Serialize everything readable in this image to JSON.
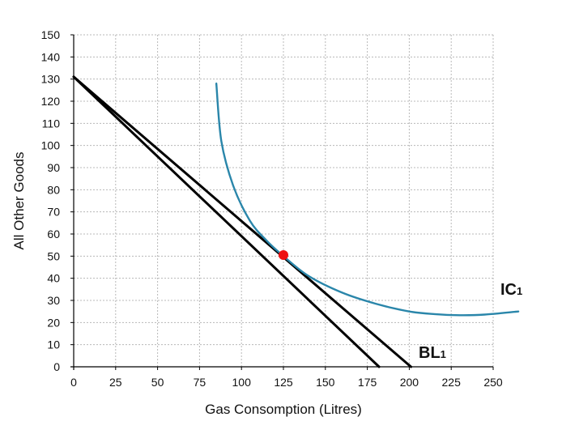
{
  "chart_data": {
    "type": "line",
    "title": "",
    "xlabel": "Gas Consomption (Litres)",
    "ylabel": "All Other Goods",
    "xlim": [
      0,
      250
    ],
    "ylim": [
      0,
      150
    ],
    "x_ticks": [
      0,
      25,
      50,
      75,
      100,
      125,
      150,
      175,
      200,
      225,
      250
    ],
    "y_ticks": [
      0,
      10,
      20,
      30,
      40,
      50,
      60,
      70,
      80,
      90,
      100,
      110,
      120,
      130,
      140,
      150
    ],
    "grid": {
      "vertical": true,
      "horizontal": true,
      "style": "dotted"
    },
    "series": [
      {
        "id": "bl_outer",
        "name": "BL1",
        "label": {
          "main": "BL",
          "sub": "1"
        },
        "color": "#000000",
        "x": [
          0,
          201
        ],
        "y": [
          131,
          0
        ]
      },
      {
        "id": "bl_inner",
        "color": "#000000",
        "x": [
          0,
          182
        ],
        "y": [
          131,
          0
        ]
      },
      {
        "id": "ic",
        "name": "IC1",
        "label": {
          "main": "IC",
          "sub": "1"
        },
        "color": "#2a86aa",
        "x": [
          85,
          88,
          95,
          105,
          115,
          125,
          140,
          160,
          180,
          200,
          215,
          230,
          245,
          265
        ],
        "y": [
          128,
          102,
          82,
          66,
          57,
          50,
          41,
          33.5,
          28.5,
          25,
          23.8,
          23.3,
          23.6,
          25
        ]
      }
    ],
    "point": {
      "x": 125,
      "y": 50.5,
      "color": "#ee1111"
    }
  }
}
